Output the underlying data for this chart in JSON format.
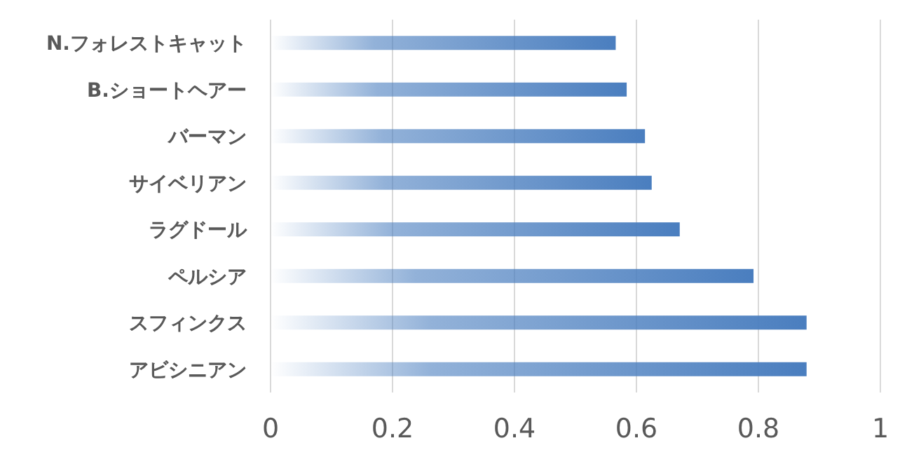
{
  "chart_data": {
    "type": "bar",
    "orientation": "horizontal",
    "categories": [
      "N.フォレストキャット",
      "B.ショートヘアー",
      "バーマン",
      "サイベリアン",
      "ラグドール",
      "ペルシア",
      "スフィンクス",
      "アビシニアン"
    ],
    "values": [
      0.566,
      0.584,
      0.614,
      0.625,
      0.671,
      0.792,
      0.879,
      0.879
    ],
    "color": "#4a7ebf",
    "xlim": [
      0,
      1
    ],
    "xticks": [
      0,
      0.2,
      0.4,
      0.6,
      0.8,
      1
    ],
    "grid": "x"
  }
}
